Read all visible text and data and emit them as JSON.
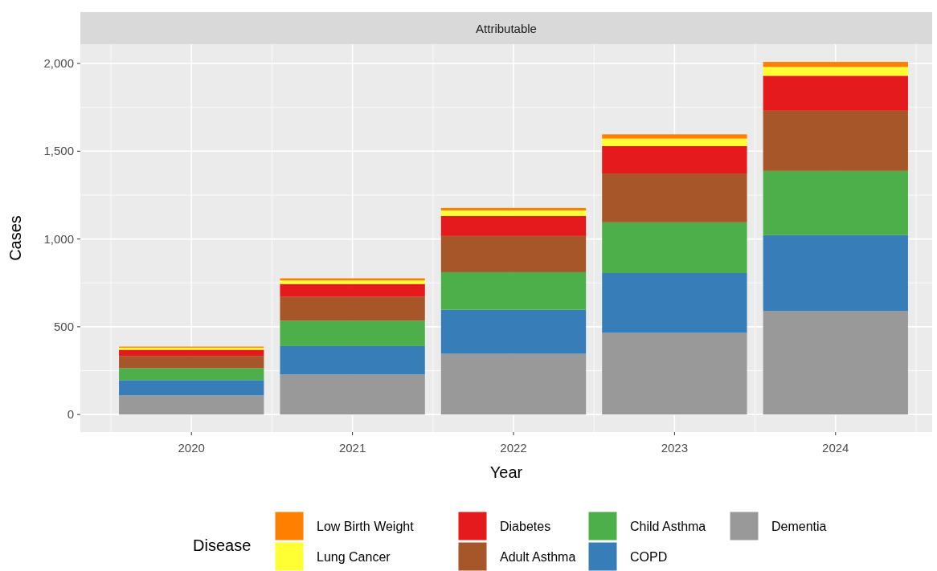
{
  "chart_data": {
    "type": "bar",
    "stacked": true,
    "subtitle": "Attributable",
    "xlabel": "Year",
    "ylabel": "Cases",
    "legend_title": "Disease",
    "legend": "bottom",
    "grid": true,
    "categories": [
      "2020",
      "2021",
      "2022",
      "2023",
      "2024"
    ],
    "ylim": [
      -100,
      2110
    ],
    "yticks": [
      {
        "value": 0,
        "label": "0"
      },
      {
        "value": 500,
        "label": "500"
      },
      {
        "value": 1000,
        "label": "1,000"
      },
      {
        "value": 1500,
        "label": "1,500"
      },
      {
        "value": 2000,
        "label": "2,000"
      }
    ],
    "series": [
      {
        "name": "Dementia",
        "color": "#999999",
        "values": [
          109,
          228,
          346,
          465,
          589
        ]
      },
      {
        "name": "COPD",
        "color": "#377eb8",
        "values": [
          87,
          162,
          251,
          341,
          433
        ]
      },
      {
        "name": "Child Asthma",
        "color": "#4daf4a",
        "values": [
          68,
          144,
          214,
          289,
          366
        ]
      },
      {
        "name": "Adult Asthma",
        "color": "#a65628",
        "values": [
          70,
          136,
          206,
          278,
          343
        ]
      },
      {
        "name": "Diabetes",
        "color": "#e41a1c",
        "values": [
          35,
          74,
          114,
          156,
          199
        ]
      },
      {
        "name": "Lung Cancer",
        "color": "#ffff33",
        "values": [
          12,
          20,
          31,
          43,
          50
        ]
      },
      {
        "name": "Low Birth Weight",
        "color": "#ff7f00",
        "values": [
          6,
          12,
          15,
          24,
          29
        ]
      }
    ]
  }
}
